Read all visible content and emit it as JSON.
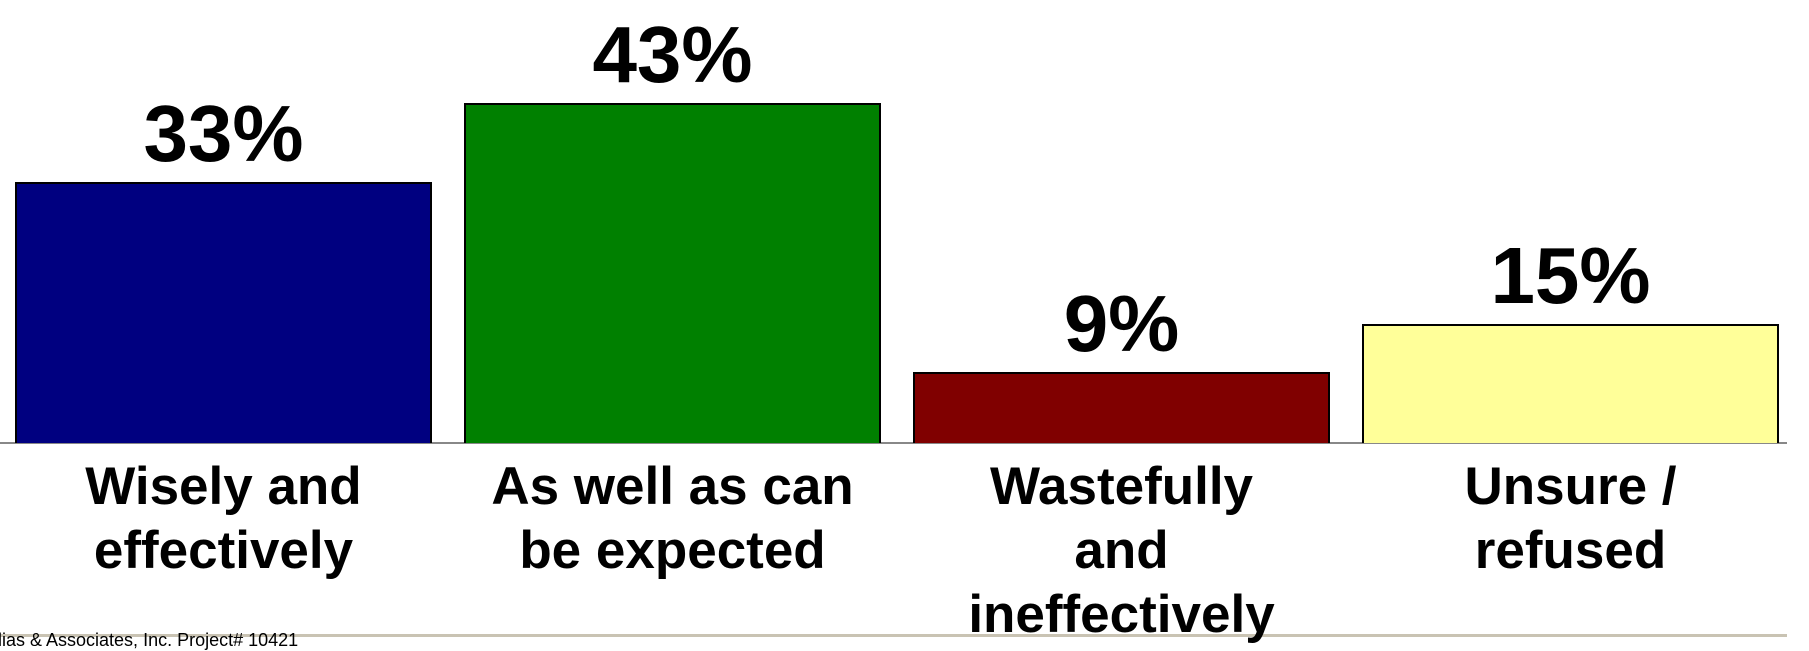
{
  "chart_data": {
    "type": "bar",
    "categories": [
      "Wisely and\neffectively",
      "As well as can\nbe expected",
      "Wastefully\nand\nineffectively",
      "Unsure /\nrefused"
    ],
    "values": [
      33,
      43,
      9,
      15
    ],
    "value_labels": [
      "33%",
      "43%",
      "9%",
      "15%"
    ],
    "colors": [
      "#000080",
      "#008000",
      "#800000",
      "#ffff99"
    ],
    "ylim": [
      0,
      56
    ]
  },
  "footer": "lias & Associates, Inc. Project# 10421"
}
